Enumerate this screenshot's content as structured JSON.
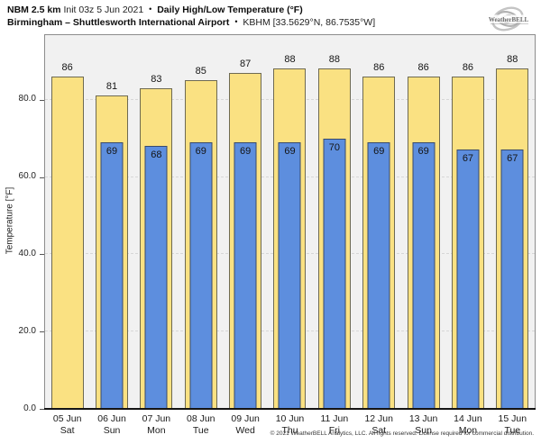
{
  "header": {
    "model": "NBM 2.5 km",
    "init": "Init 03z 5 Jun 2021",
    "separator": "•",
    "product": "Daily High/Low Temperature (°F)",
    "station": "Birmingham – Shuttlesworth International Airport",
    "separator2": "•",
    "station_id": "KBHM [33.5629°N, 86.7535°W]",
    "logo": "WeatherBELL"
  },
  "chart_data": {
    "type": "bar",
    "title": "Daily High/Low Temperature (°F)",
    "ylabel": "Temperature [°F]",
    "categories": [
      [
        "05 Jun",
        "Sat"
      ],
      [
        "06 Jun",
        "Sun"
      ],
      [
        "07 Jun",
        "Mon"
      ],
      [
        "08 Jun",
        "Tue"
      ],
      [
        "09 Jun",
        "Wed"
      ],
      [
        "10 Jun",
        "Thu"
      ],
      [
        "11 Jun",
        "Fri"
      ],
      [
        "12 Jun",
        "Sat"
      ],
      [
        "13 Jun",
        "Sun"
      ],
      [
        "14 Jun",
        "Mon"
      ],
      [
        "15 Jun",
        "Tue"
      ]
    ],
    "series": [
      {
        "name": "High",
        "fill": "#FAE182",
        "border": "#6E6A52",
        "values": [
          86,
          81,
          83,
          85,
          87,
          88,
          88,
          86,
          86,
          86,
          88
        ]
      },
      {
        "name": "Low",
        "fill": "#5D8EDE",
        "border": "#394A6B",
        "values": [
          null,
          69,
          68,
          69,
          69,
          69,
          70,
          69,
          69,
          67,
          67
        ]
      }
    ],
    "yticks": [
      0,
      20,
      40,
      60,
      80
    ],
    "ytick_labels": [
      "0.0",
      "20.0",
      "40.0",
      "60.0",
      "80.0"
    ],
    "ylim": [
      0,
      96.7
    ],
    "grid": "horizontal-dashed",
    "plot_background": "#F1F1F1"
  },
  "footer": {
    "copyright": "© 2021 WeatherBELL Analytics, LLC. All rights reserved. License required for commercial distribution."
  }
}
